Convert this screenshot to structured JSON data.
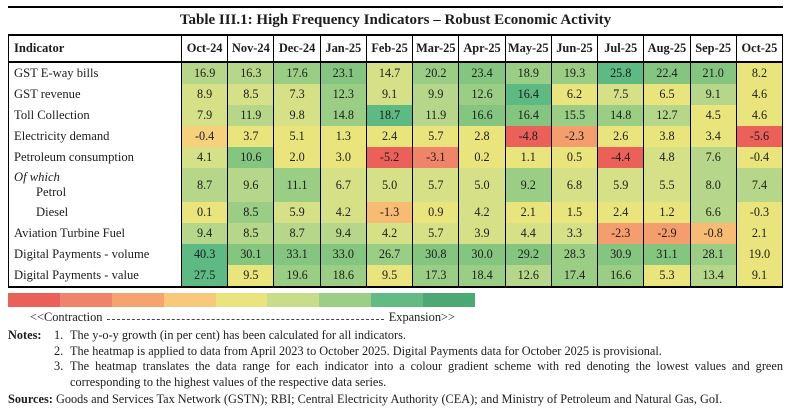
{
  "title": "Table III.1: High Frequency Indicators – Robust Economic Activity",
  "table": {
    "indicator_header": "Indicator",
    "columns": [
      "Oct-24",
      "Nov-24",
      "Dec-24",
      "Jan-25",
      "Feb-25",
      "Mar-25",
      "Apr-25",
      "May-25",
      "Jun-25",
      "Jul-25",
      "Aug-25",
      "Sep-25",
      "Oct-25"
    ],
    "rows": [
      {
        "label": "GST E-way bills",
        "prefix": null,
        "indent": false,
        "levels": [
          "L7",
          "L7",
          "L8",
          "L9",
          "L6",
          "L8",
          "L9",
          "L8",
          "L8",
          "L10",
          "L9",
          "L9",
          "L5"
        ]
      },
      {
        "label": "GST revenue",
        "prefix": null,
        "indent": false,
        "levels": [
          "L6",
          "L6",
          "L6",
          "L8",
          "L6",
          "L7",
          "L8",
          "L10",
          "L5",
          "L6",
          "L5",
          "L7",
          "L5"
        ]
      },
      {
        "label": "Toll Collection",
        "prefix": null,
        "indent": false,
        "levels": [
          "L6",
          "L7",
          "L6",
          "L8",
          "L10",
          "L7",
          "L9",
          "L9",
          "L8",
          "L8",
          "L7",
          "L5",
          "L5"
        ]
      },
      {
        "label": "Electricity demand",
        "prefix": null,
        "indent": false,
        "levels": [
          "L4",
          "L5",
          "L5",
          "L5",
          "L5",
          "L5",
          "L5",
          "L0",
          "L2",
          "L5",
          "L5",
          "L5",
          "L0"
        ]
      },
      {
        "label": "Petroleum consumption",
        "prefix": null,
        "indent": false,
        "levels": [
          "L6",
          "L9",
          "L5",
          "L5",
          "L0",
          "L1",
          "L5",
          "L5",
          "L5",
          "L0",
          "L6",
          "L7",
          "L5"
        ]
      },
      {
        "label": "Petrol",
        "prefix": "Of which",
        "indent": true,
        "levels": [
          "L7",
          "L7",
          "L8",
          "L6",
          "L6",
          "L6",
          "L6",
          "L8",
          "L6",
          "L6",
          "L6",
          "L7",
          "L7"
        ]
      },
      {
        "label": "Diesel",
        "prefix": null,
        "indent": true,
        "levels": [
          "L5",
          "L8",
          "L6",
          "L6",
          "L3",
          "L5",
          "L6",
          "L5",
          "L5",
          "L5",
          "L5",
          "L7",
          "L5"
        ]
      },
      {
        "label": "Aviation Turbine Fuel",
        "prefix": null,
        "indent": false,
        "levels": [
          "L7",
          "L7",
          "L7",
          "L7",
          "L6",
          "L6",
          "L6",
          "L6",
          "L6",
          "L2",
          "L2",
          "L3",
          "L5"
        ]
      },
      {
        "label": "Digital Payments - volume",
        "prefix": null,
        "indent": false,
        "levels": [
          "L10",
          "L9",
          "L9",
          "L9",
          "L8",
          "L9",
          "L9",
          "L9",
          "L8",
          "L9",
          "L9",
          "L8",
          "L5"
        ]
      },
      {
        "label": "Digital Payments - value",
        "prefix": null,
        "indent": false,
        "levels": [
          "L10",
          "L5",
          "L8",
          "L8",
          "L5",
          "L8",
          "L8",
          "L7",
          "L8",
          "L8",
          "L5",
          "L7",
          "L5"
        ]
      }
    ]
  },
  "palette": {
    "L0": "#eb6159",
    "L1": "#f0846a",
    "L2": "#f49d6d",
    "L3": "#f7bb74",
    "L4": "#f6d17b",
    "L5": "#eae47d",
    "L6": "#d6e187",
    "L7": "#b6d789",
    "L8": "#9bce85",
    "L9": "#84c67f",
    "L10": "#5eba83"
  },
  "legend": {
    "colors": [
      "#e96158",
      "#f0846a",
      "#f5a46e",
      "#f8c87b",
      "#e9e47e",
      "#c8dd8a",
      "#9bcf86",
      "#63ba82",
      "#4ca974"
    ],
    "left_label": "<<Contraction",
    "right_label": "Expansion>>"
  },
  "notes": {
    "heading": "Notes:",
    "items": [
      {
        "num": "1.",
        "text": "The y-o-y growth (in per cent) has been calculated for all indicators."
      },
      {
        "num": "2.",
        "text": "The heatmap is applied to data from April 2023 to October 2025. Digital Payments data for October 2025 is provisional."
      },
      {
        "num": "3.",
        "text": "The heatmap translates the data range for each indicator into a colour gradient scheme with red denoting the lowest values and green corresponding to the highest values of the respective data series."
      }
    ]
  },
  "sources": {
    "heading": "Sources:",
    "text": "Goods and Services Tax Network (GSTN); RBI; Central Electricity Authority (CEA); and Ministry of Petroleum and Natural Gas, GoI."
  },
  "chart_data": {
    "type": "heatmap",
    "title": "Table III.1: High Frequency Indicators – Robust Economic Activity",
    "unit": "y-o-y growth, per cent",
    "columns": [
      "Oct-24",
      "Nov-24",
      "Dec-24",
      "Jan-25",
      "Feb-25",
      "Mar-25",
      "Apr-25",
      "May-25",
      "Jun-25",
      "Jul-25",
      "Aug-25",
      "Sep-25",
      "Oct-25"
    ],
    "series": [
      {
        "name": "GST E-way bills",
        "values": [
          16.9,
          16.3,
          17.6,
          23.1,
          14.7,
          20.2,
          23.4,
          18.9,
          19.3,
          25.8,
          22.4,
          21.0,
          8.2
        ]
      },
      {
        "name": "GST revenue",
        "values": [
          8.9,
          8.5,
          7.3,
          12.3,
          9.1,
          9.9,
          12.6,
          16.4,
          6.2,
          7.5,
          6.5,
          9.1,
          4.6
        ]
      },
      {
        "name": "Toll Collection",
        "values": [
          7.9,
          11.9,
          9.8,
          14.8,
          18.7,
          11.9,
          16.6,
          16.4,
          15.5,
          14.8,
          12.7,
          4.5,
          4.6
        ]
      },
      {
        "name": "Electricity demand",
        "values": [
          -0.4,
          3.7,
          5.1,
          1.3,
          2.4,
          5.7,
          2.8,
          -4.8,
          -2.3,
          2.6,
          3.8,
          3.4,
          -5.6
        ]
      },
      {
        "name": "Petroleum consumption",
        "values": [
          4.1,
          10.6,
          2.0,
          3.0,
          -5.2,
          -3.1,
          0.2,
          1.1,
          0.5,
          -4.4,
          4.8,
          7.6,
          -0.4
        ]
      },
      {
        "name": "Petrol",
        "values": [
          8.7,
          9.6,
          11.1,
          6.7,
          5.0,
          5.7,
          5.0,
          9.2,
          6.8,
          5.9,
          5.5,
          8.0,
          7.4
        ]
      },
      {
        "name": "Diesel",
        "values": [
          0.1,
          8.5,
          5.9,
          4.2,
          -1.3,
          0.9,
          4.2,
          2.1,
          1.5,
          2.4,
          1.2,
          6.6,
          -0.3
        ]
      },
      {
        "name": "Aviation Turbine Fuel",
        "values": [
          9.4,
          8.5,
          8.7,
          9.4,
          4.2,
          5.7,
          3.9,
          4.4,
          3.3,
          -2.3,
          -2.9,
          -0.8,
          2.1
        ]
      },
      {
        "name": "Digital Payments - volume",
        "values": [
          40.3,
          30.1,
          33.1,
          33.0,
          26.7,
          30.8,
          30.0,
          29.2,
          28.3,
          30.9,
          31.1,
          28.1,
          19.0
        ]
      },
      {
        "name": "Digital Payments - value",
        "values": [
          27.5,
          9.5,
          19.6,
          18.6,
          9.5,
          17.3,
          18.4,
          12.6,
          17.4,
          16.6,
          5.3,
          13.4,
          9.1
        ]
      }
    ],
    "colorscale": "red = lowest values (contraction) through yellow to green = highest values (expansion), scaled per indicator"
  }
}
